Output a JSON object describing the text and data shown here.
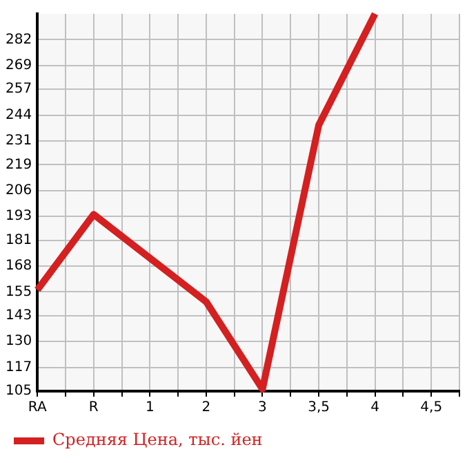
{
  "chart_data": {
    "type": "line",
    "categories": [
      "RA",
      "R",
      "1",
      "2",
      "3",
      "3,5",
      "4",
      "4,5"
    ],
    "series": [
      {
        "name": "Средняя Цена, тыс. йен",
        "color": "#d42020",
        "values": [
          156,
          194,
          172,
          150,
          106,
          239,
          295,
          null
        ]
      }
    ],
    "ylim": [
      105,
      295
    ],
    "yticks": [
      105,
      117,
      130,
      143,
      155,
      168,
      181,
      193,
      206,
      219,
      231,
      244,
      257,
      269,
      282
    ],
    "grid": true,
    "legend": "bottom",
    "marker": "none",
    "line_style": "solid"
  }
}
